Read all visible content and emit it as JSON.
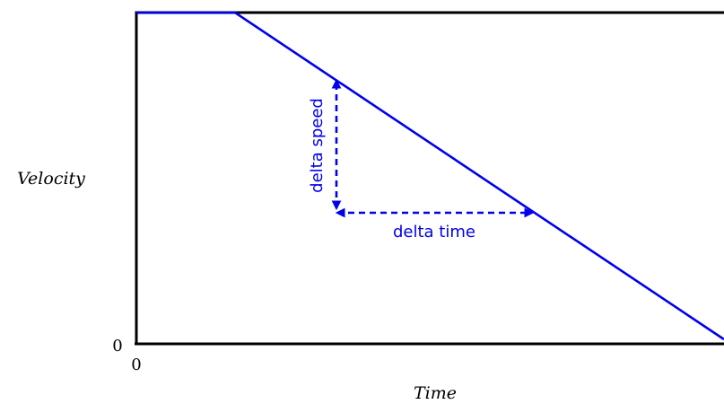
{
  "axes": {
    "ylabel": "Velocity",
    "xlabel": "Time",
    "y_origin_label": "0",
    "x_origin_label": "0"
  },
  "annotations": {
    "delta_speed": "delta speed",
    "delta_time": "delta time"
  },
  "colors": {
    "line": "#0000ee",
    "axes": "#000000"
  }
}
